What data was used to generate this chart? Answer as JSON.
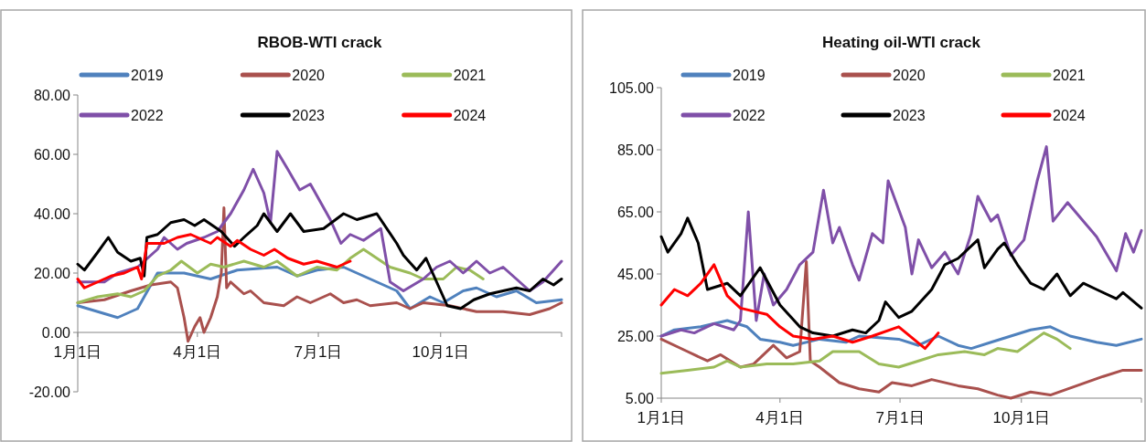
{
  "chart_data": [
    {
      "type": "line",
      "title": "RBOB-WTI  crack",
      "legend": "top",
      "grid": false,
      "xlim": [
        "--01-01",
        "--12-31"
      ],
      "xticks": [
        {
          "value": "--01-01",
          "label": "1月1日"
        },
        {
          "value": "--04-01",
          "label": "4月1日"
        },
        {
          "value": "--07-01",
          "label": "7月1日"
        },
        {
          "value": "--10-01",
          "label": "10月1日"
        }
      ],
      "ylim": [
        -20,
        80
      ],
      "yticks": [
        {
          "value": -20,
          "label": "-20.00"
        },
        {
          "value": 0,
          "label": "0.00"
        },
        {
          "value": 20,
          "label": "20.00"
        },
        {
          "value": 40,
          "label": "40.00"
        },
        {
          "value": 60,
          "label": "60.00"
        },
        {
          "value": 80,
          "label": "80.00"
        }
      ],
      "series": [
        {
          "name": "2019",
          "color": "#4f81bd",
          "x": [
            "--01-01",
            "--01-31",
            "--02-15",
            "--03-02",
            "--03-22",
            "--04-11",
            "--05-01",
            "--05-31",
            "--06-15",
            "--06-30",
            "--07-20",
            "--08-04",
            "--08-29",
            "--09-08",
            "--09-23",
            "--10-03",
            "--10-18",
            "--10-28",
            "--11-12",
            "--11-27",
            "--12-12",
            "--12-31"
          ],
          "values": [
            9,
            5,
            8,
            20,
            20,
            18,
            21,
            22,
            19,
            21,
            22,
            19,
            14,
            8,
            12,
            10,
            14,
            15,
            12,
            14,
            10,
            11
          ]
        },
        {
          "name": "2020",
          "color": "#a9504d",
          "x": [
            "--01-01",
            "--01-21",
            "--02-10",
            "--02-25",
            "--03-12",
            "--03-17",
            "--03-22",
            "--03-25",
            "--03-30",
            "--04-03",
            "--04-06",
            "--04-11",
            "--04-16",
            "--04-19",
            "--04-21",
            "--04-23",
            "--04-26",
            "--05-06",
            "--05-11",
            "--05-21",
            "--06-05",
            "--06-15",
            "--06-25",
            "--07-10",
            "--07-20",
            "--07-30",
            "--08-09",
            "--08-29",
            "--09-08",
            "--09-18",
            "--10-08",
            "--10-28",
            "--11-17",
            "--12-07",
            "--12-22",
            "--12-31"
          ],
          "values": [
            10,
            11,
            14,
            16,
            17,
            15,
            5,
            -3,
            2,
            5,
            0,
            5,
            12,
            20,
            42,
            15,
            17,
            13,
            14,
            10,
            9,
            12,
            10,
            13,
            10,
            11,
            9,
            10,
            8,
            10,
            9,
            7,
            7,
            6,
            8,
            10
          ]
        },
        {
          "name": "2021",
          "color": "#9bbb59",
          "x": [
            "--01-01",
            "--01-16",
            "--01-31",
            "--02-10",
            "--02-20",
            "--03-02",
            "--03-12",
            "--03-20",
            "--04-01",
            "--04-11",
            "--04-21",
            "--05-06",
            "--05-21",
            "--05-31",
            "--06-15",
            "--06-30",
            "--07-15",
            "--07-25",
            "--08-04",
            "--08-14",
            "--08-24",
            "--09-08",
            "--09-18",
            "--10-03",
            "--10-13",
            "--10-23",
            "--11-02"
          ],
          "values": [
            10,
            12,
            13,
            12,
            14,
            19,
            21,
            24,
            20,
            23,
            22,
            24,
            22,
            24,
            19,
            22,
            21,
            25,
            28,
            25,
            22,
            20,
            18,
            18,
            22,
            21,
            18
          ]
        },
        {
          "name": "2022",
          "color": "#7f4fa8",
          "x": [
            "--01-01",
            "--01-21",
            "--01-31",
            "--02-15",
            "--02-25",
            "--03-02",
            "--03-07",
            "--03-17",
            "--03-24",
            "--04-06",
            "--04-16",
            "--04-26",
            "--05-06",
            "--05-13",
            "--05-21",
            "--05-26",
            "--05-31",
            "--06-08",
            "--06-17",
            "--06-25",
            "--07-05",
            "--07-10",
            "--07-18",
            "--07-25",
            "--08-04",
            "--08-17",
            "--08-24",
            "--09-03",
            "--09-18",
            "--09-28",
            "--10-08",
            "--10-18",
            "--10-28",
            "--11-07",
            "--11-17",
            "--11-27",
            "--12-07",
            "--12-17",
            "--12-31"
          ],
          "values": [
            17,
            17,
            20,
            22,
            26,
            28,
            32,
            28,
            30,
            32,
            34,
            40,
            48,
            55,
            47,
            37,
            61,
            55,
            48,
            50,
            42,
            38,
            30,
            33,
            31,
            35,
            17,
            14,
            18,
            22,
            24,
            20,
            24,
            20,
            22,
            18,
            14,
            17,
            24
          ]
        },
        {
          "name": "2023",
          "color": "#000000",
          "x": [
            "--01-01",
            "--01-06",
            "--01-16",
            "--01-24",
            "--01-31",
            "--02-10",
            "--02-17",
            "--02-20",
            "--02-22",
            "--03-02",
            "--03-12",
            "--03-22",
            "--03-30",
            "--04-06",
            "--04-19",
            "--04-29",
            "--05-06",
            "--05-16",
            "--05-21",
            "--05-31",
            "--06-10",
            "--06-20",
            "--07-05",
            "--07-20",
            "--07-30",
            "--08-14",
            "--08-29",
            "--09-03",
            "--09-13",
            "--09-20",
            "--09-28",
            "--10-06",
            "--10-16",
            "--10-26",
            "--11-07",
            "--11-17",
            "--11-27",
            "--12-07",
            "--12-17",
            "--12-25",
            "--12-31"
          ],
          "values": [
            23,
            21,
            27,
            32,
            27,
            24,
            25,
            19,
            32,
            33,
            37,
            38,
            36,
            38,
            34,
            29,
            32,
            36,
            40,
            34,
            40,
            34,
            35,
            40,
            38,
            40,
            30,
            26,
            21,
            25,
            17,
            9,
            8,
            11,
            13,
            14,
            15,
            14,
            18,
            16,
            18
          ]
        },
        {
          "name": "2024",
          "color": "#ff0000",
          "x": [
            "--01-01",
            "--01-06",
            "--01-16",
            "--01-26",
            "--02-05",
            "--02-15",
            "--02-18",
            "--02-22",
            "--03-07",
            "--03-17",
            "--03-27",
            "--04-11",
            "--04-16",
            "--04-26",
            "--05-01",
            "--05-11",
            "--05-21",
            "--05-29",
            "--06-08",
            "--06-20",
            "--06-30",
            "--07-15",
            "--07-25"
          ],
          "values": [
            18,
            15,
            17,
            19,
            20,
            22,
            18,
            30,
            30,
            32,
            33,
            30,
            32,
            29,
            31,
            28,
            26,
            28,
            25,
            23,
            24,
            22,
            24
          ]
        }
      ]
    },
    {
      "type": "line",
      "title": "Heating oil-WTI crack",
      "legend": "top",
      "grid": false,
      "xlim": [
        "--01-01",
        "--12-31"
      ],
      "xticks": [
        {
          "value": "--01-01",
          "label": "1月1日"
        },
        {
          "value": "--04-01",
          "label": "4月1日"
        },
        {
          "value": "--07-01",
          "label": "7月1日"
        },
        {
          "value": "--10-01",
          "label": "10月1日"
        }
      ],
      "ylim": [
        5,
        105
      ],
      "yticks": [
        {
          "value": 5,
          "label": "5.00"
        },
        {
          "value": 25,
          "label": "25.00"
        },
        {
          "value": 45,
          "label": "45.00"
        },
        {
          "value": 65,
          "label": "65.00"
        },
        {
          "value": 85,
          "label": "85.00"
        },
        {
          "value": 105,
          "label": "105.00"
        }
      ],
      "series": [
        {
          "name": "2019",
          "color": "#4f81bd",
          "x": [
            "--01-01",
            "--01-11",
            "--01-31",
            "--02-20",
            "--03-07",
            "--03-17",
            "--04-01",
            "--04-11",
            "--05-01",
            "--05-21",
            "--05-31",
            "--06-30",
            "--07-15",
            "--07-30",
            "--08-14",
            "--08-24",
            "--09-08",
            "--09-23",
            "--10-08",
            "--10-23",
            "--11-07",
            "--11-27",
            "--12-12",
            "--12-31"
          ],
          "values": [
            25,
            27,
            28,
            30,
            28,
            24,
            23,
            22,
            24,
            23,
            25,
            24,
            22,
            25,
            22,
            21,
            23,
            25,
            27,
            28,
            25,
            23,
            22,
            24
          ]
        },
        {
          "name": "2020",
          "color": "#a9504d",
          "x": [
            "--01-01",
            "--01-21",
            "--02-05",
            "--02-15",
            "--03-02",
            "--03-12",
            "--03-27",
            "--04-06",
            "--04-16",
            "--04-21",
            "--04-24",
            "--05-01",
            "--05-16",
            "--05-31",
            "--06-15",
            "--06-25",
            "--07-10",
            "--07-25",
            "--08-14",
            "--08-29",
            "--09-13",
            "--09-23",
            "--10-08",
            "--10-23",
            "--11-12",
            "--12-02",
            "--12-17",
            "--12-31"
          ],
          "values": [
            24,
            20,
            17,
            19,
            15,
            16,
            22,
            18,
            20,
            49,
            17,
            15,
            10,
            8,
            7,
            10,
            9,
            11,
            9,
            8,
            6,
            5,
            7,
            6,
            9,
            12,
            14,
            14
          ]
        },
        {
          "name": "2021",
          "color": "#9bbb59",
          "x": [
            "--01-01",
            "--01-21",
            "--02-10",
            "--02-20",
            "--03-02",
            "--03-22",
            "--04-11",
            "--05-01",
            "--05-11",
            "--05-31",
            "--06-15",
            "--06-30",
            "--07-15",
            "--07-30",
            "--08-19",
            "--09-03",
            "--09-13",
            "--09-28",
            "--10-08",
            "--10-18",
            "--10-28",
            "--11-07"
          ],
          "values": [
            13,
            14,
            15,
            17,
            15,
            16,
            16,
            17,
            20,
            20,
            16,
            15,
            17,
            19,
            20,
            19,
            21,
            20,
            23,
            26,
            24,
            21
          ]
        },
        {
          "name": "2022",
          "color": "#7f4fa8",
          "x": [
            "--01-01",
            "--01-16",
            "--01-26",
            "--02-10",
            "--02-25",
            "--03-02",
            "--03-08",
            "--03-14",
            "--03-20",
            "--03-27",
            "--04-06",
            "--04-16",
            "--04-26",
            "--05-04",
            "--05-11",
            "--05-16",
            "--05-26",
            "--05-31",
            "--06-10",
            "--06-18",
            "--06-22",
            "--07-05",
            "--07-10",
            "--07-15",
            "--07-25",
            "--08-04",
            "--08-14",
            "--08-24",
            "--08-29",
            "--09-08",
            "--09-13",
            "--09-23",
            "--10-03",
            "--10-13",
            "--10-20",
            "--10-25",
            "--11-05",
            "--11-17",
            "--11-27",
            "--12-12",
            "--12-19",
            "--12-25",
            "--12-31"
          ],
          "values": [
            25,
            27,
            26,
            29,
            27,
            30,
            65,
            30,
            45,
            35,
            40,
            48,
            52,
            72,
            55,
            60,
            48,
            43,
            58,
            55,
            75,
            60,
            45,
            56,
            47,
            52,
            45,
            58,
            70,
            62,
            64,
            51,
            56,
            75,
            86,
            62,
            68,
            62,
            57,
            46,
            58,
            52,
            59
          ]
        },
        {
          "name": "2023",
          "color": "#000000",
          "x": [
            "--01-01",
            "--01-06",
            "--01-16",
            "--01-21",
            "--01-29",
            "--02-05",
            "--02-20",
            "--03-02",
            "--03-17",
            "--04-01",
            "--04-16",
            "--04-26",
            "--05-11",
            "--05-26",
            "--06-05",
            "--06-15",
            "--06-20",
            "--06-30",
            "--07-10",
            "--07-25",
            "--08-04",
            "--08-14",
            "--08-29",
            "--09-03",
            "--09-13",
            "--09-18",
            "--09-28",
            "--10-08",
            "--10-18",
            "--10-28",
            "--11-07",
            "--11-17",
            "--11-27",
            "--12-12",
            "--12-17",
            "--12-31"
          ],
          "values": [
            57,
            52,
            58,
            63,
            55,
            40,
            42,
            38,
            47,
            35,
            28,
            26,
            25,
            27,
            26,
            30,
            36,
            31,
            33,
            40,
            48,
            50,
            56,
            47,
            53,
            55,
            48,
            42,
            40,
            45,
            38,
            42,
            40,
            37,
            39,
            34
          ]
        },
        {
          "name": "2024",
          "color": "#ff0000",
          "x": [
            "--01-01",
            "--01-11",
            "--01-21",
            "--01-31",
            "--02-10",
            "--02-20",
            "--03-02",
            "--03-22",
            "--04-01",
            "--04-11",
            "--04-26",
            "--05-11",
            "--05-26",
            "--06-10",
            "--06-30",
            "--07-20",
            "--07-30"
          ],
          "values": [
            35,
            40,
            38,
            42,
            48,
            38,
            34,
            32,
            28,
            25,
            24,
            25,
            23,
            25,
            28,
            21,
            26
          ]
        }
      ]
    }
  ]
}
